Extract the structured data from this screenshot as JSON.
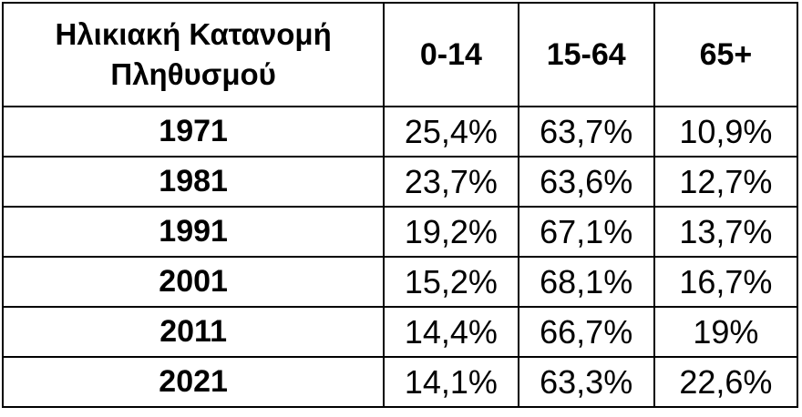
{
  "chart_data": {
    "type": "table",
    "title_line1": "Ηλικιακή Κατανομή",
    "title_line2": "Πληθυσμού",
    "columns": [
      "0-14",
      "15-64",
      "65+"
    ],
    "rows": [
      {
        "year": "1971",
        "cells": [
          "25,4%",
          "63,7%",
          "10,9%"
        ]
      },
      {
        "year": "1981",
        "cells": [
          "23,7%",
          "63,6%",
          "12,7%"
        ]
      },
      {
        "year": "1991",
        "cells": [
          "19,2%",
          "67,1%",
          "13,7%"
        ]
      },
      {
        "year": "2001",
        "cells": [
          "15,2%",
          "68,1%",
          "16,7%"
        ]
      },
      {
        "year": "2011",
        "cells": [
          "14,4%",
          "66,7%",
          "19%"
        ]
      },
      {
        "year": "2021",
        "cells": [
          "14,1%",
          "63,3%",
          "22,6%"
        ]
      }
    ]
  }
}
